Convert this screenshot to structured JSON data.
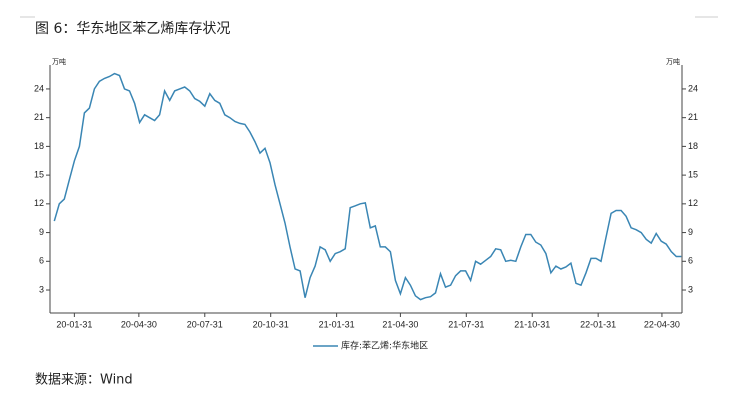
{
  "chart_data": {
    "type": "line",
    "title": "图 6：华东地区苯乙烯库存状况",
    "source": "数据来源：Wind",
    "y_unit": "万吨",
    "y2_unit": "万吨",
    "x": [
      "20-01-03",
      "20-01-10",
      "20-01-17",
      "20-01-24",
      "20-01-31",
      "20-02-07",
      "20-02-14",
      "20-02-21",
      "20-02-28",
      "20-03-06",
      "20-03-13",
      "20-03-20",
      "20-03-27",
      "20-04-03",
      "20-04-10",
      "20-04-17",
      "20-04-24",
      "20-05-01",
      "20-05-08",
      "20-05-15",
      "20-05-22",
      "20-05-29",
      "20-06-05",
      "20-06-12",
      "20-06-19",
      "20-06-26",
      "20-07-03",
      "20-07-10",
      "20-07-17",
      "20-07-24",
      "20-07-31",
      "20-08-07",
      "20-08-14",
      "20-08-21",
      "20-08-28",
      "20-09-04",
      "20-09-11",
      "20-09-18",
      "20-09-25",
      "20-10-02",
      "20-10-09",
      "20-10-16",
      "20-10-23",
      "20-10-30",
      "20-11-06",
      "20-11-13",
      "20-11-20",
      "20-11-27",
      "20-12-04",
      "20-12-11",
      "20-12-18",
      "20-12-25",
      "21-01-01",
      "21-01-08",
      "21-01-15",
      "21-01-22",
      "21-01-29",
      "21-02-05",
      "21-02-12",
      "21-02-19",
      "21-02-26",
      "21-03-05",
      "21-03-12",
      "21-03-19",
      "21-03-26",
      "21-04-02",
      "21-04-09",
      "21-04-16",
      "21-04-23",
      "21-04-30",
      "21-05-07",
      "21-05-14",
      "21-05-21",
      "21-05-28",
      "21-06-04",
      "21-06-11",
      "21-06-18",
      "21-06-25",
      "21-07-02",
      "21-07-09",
      "21-07-16",
      "21-07-23",
      "21-07-30",
      "21-08-06",
      "21-08-13",
      "21-08-20",
      "21-08-27",
      "21-09-03",
      "21-09-10",
      "21-09-17",
      "21-09-24",
      "21-10-01",
      "21-10-08",
      "21-10-15",
      "21-10-22",
      "21-10-29",
      "21-11-05",
      "21-11-12",
      "21-11-19",
      "21-11-26",
      "21-12-03",
      "21-12-10",
      "21-12-17",
      "21-12-24",
      "21-12-31",
      "22-01-07",
      "22-01-14",
      "22-01-21",
      "22-01-28",
      "22-02-04",
      "22-02-11",
      "22-02-18",
      "22-02-25",
      "22-03-04",
      "22-03-11",
      "22-03-18",
      "22-03-25",
      "22-04-01",
      "22-04-08",
      "22-04-15",
      "22-04-22",
      "22-04-29",
      "22-05-06",
      "22-05-13",
      "22-05-20",
      "22-05-27"
    ],
    "series": [
      {
        "name": "库存:苯乙烯:华东地区",
        "color": "#3a86b4",
        "values": [
          10.2,
          12,
          12.5,
          14.5,
          16.5,
          18,
          21.5,
          22,
          24,
          24.8,
          25.1,
          25.3,
          25.6,
          25.4,
          24,
          23.8,
          22.5,
          20.5,
          21.3,
          21,
          20.7,
          21.3,
          23.8,
          22.8,
          23.8,
          24,
          24.2,
          23.8,
          23,
          22.7,
          22.2,
          23.5,
          22.8,
          22.5,
          21.3,
          21,
          20.6,
          20.4,
          20.3,
          19.5,
          18.5,
          17.3,
          17.8,
          16.3,
          14,
          12,
          10,
          7.5,
          5.2,
          5,
          2.2,
          4.3,
          5.5,
          7.5,
          7.2,
          6,
          6.8,
          7,
          7.3,
          11.6,
          11.8,
          12,
          12.1,
          9.5,
          9.7,
          7.5,
          7.5,
          7,
          4,
          2.6,
          4.3,
          3.5,
          2.4,
          2,
          2.2,
          2.3,
          2.7,
          4.7,
          3.3,
          3.5,
          4.5,
          5,
          5,
          4,
          6,
          5.7,
          6.1,
          6.5,
          7.3,
          7.2,
          6,
          6.1,
          6,
          7.5,
          8.8,
          8.8,
          8,
          7.7,
          6.8,
          4.8,
          5.5,
          5.2,
          5.4,
          5.8,
          3.7,
          3.5,
          4.8,
          6.3,
          6.3,
          6,
          8.5,
          11,
          11.3,
          11.3,
          10.7,
          9.5,
          9.3,
          9,
          8.3,
          7.9,
          8.9,
          8.1,
          7.8,
          7,
          6.5,
          6.5
        ]
      }
    ],
    "xlim": [
      "19-12-28",
      "22-05-28"
    ],
    "xticks": [
      "20-01-31",
      "20-04-30",
      "20-07-31",
      "20-10-31",
      "21-01-31",
      "21-04-30",
      "21-07-31",
      "21-10-31",
      "22-01-31",
      "22-04-30"
    ],
    "ylim": [
      0.6,
      26.5
    ],
    "yticks": [
      3,
      6,
      9,
      12,
      15,
      18,
      21,
      24
    ],
    "y2lim": [
      0.6,
      26.5
    ],
    "y2ticks": [
      3,
      6,
      9,
      12,
      15,
      18,
      21,
      24
    ],
    "grid": false,
    "legend": "bottom"
  }
}
